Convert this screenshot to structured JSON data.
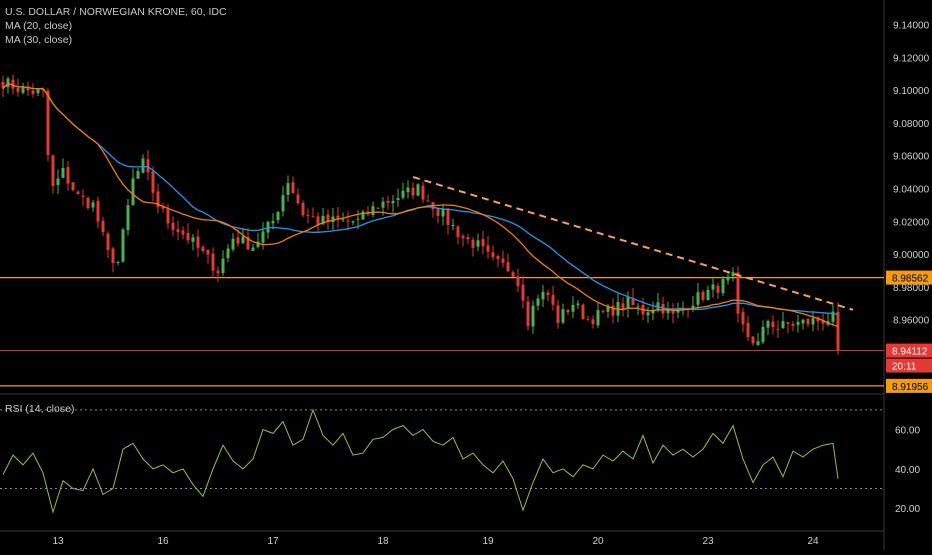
{
  "header": {
    "symbol_line": "U.S. DOLLAR / NORWEGIAN KRONE, 60, IDC",
    "ma20_label": "MA (20, close)",
    "ma30_label": "MA (30, close)",
    "rsi_label": "RSI (14, close)"
  },
  "colors": {
    "background": "#000000",
    "up_candle": "#4caf50",
    "down_candle": "#e53935",
    "ma20": "#f57c00",
    "ma30": "#2196f3",
    "rsi_line": "#8bc34a",
    "level_line": "#f39c12",
    "price_line": "#d32f2f",
    "trendline": "#f5a05a",
    "axis_text": "#d0d0d0"
  },
  "price_axis": {
    "ticks": [
      "9.14000",
      "9.12000",
      "9.10000",
      "9.08000",
      "9.06000",
      "9.04000",
      "9.02000",
      "9.00000",
      "8.98000",
      "8.96000"
    ]
  },
  "price_badges": {
    "upper_level": "8.98562",
    "current_price": "8.94112",
    "countdown": "20:11",
    "lower_level": "8.91956"
  },
  "rsi_axis": {
    "ticks": [
      "60.00",
      "40.00",
      "20.00"
    ]
  },
  "time_axis": {
    "labels": [
      "13",
      "16",
      "17",
      "18",
      "19",
      "20",
      "23",
      "24"
    ]
  },
  "chart_data": {
    "type": "candlestick",
    "price_ylim": [
      8.9195,
      9.144
    ],
    "rsi_ylim": [
      14,
      75
    ],
    "levels": [
      {
        "value": 8.98562
      },
      {
        "value": 8.91956
      },
      {
        "value": 8.94112
      }
    ],
    "trendline": {
      "from": {
        "session": "18",
        "price": 9.047
      },
      "to": {
        "session": "24",
        "price": 8.966
      }
    },
    "rsi_bands": [
      70,
      30
    ],
    "time_sessions": [
      {
        "label": "13",
        "index": 11
      },
      {
        "label": "16",
        "index": 32
      },
      {
        "label": "17",
        "index": 54
      },
      {
        "label": "18",
        "index": 76
      },
      {
        "label": "19",
        "index": 97
      },
      {
        "label": "20",
        "index": 119
      },
      {
        "label": "23",
        "index": 141
      },
      {
        "label": "24",
        "index": 162
      }
    ],
    "price_anchors": [
      [
        0,
        9.105
      ],
      [
        4,
        9.1
      ],
      [
        8,
        9.098
      ],
      [
        9,
        9.06
      ],
      [
        10,
        9.04
      ],
      [
        12,
        9.05
      ],
      [
        15,
        9.035
      ],
      [
        18,
        9.03
      ],
      [
        21,
        9.0
      ],
      [
        23,
        8.995
      ],
      [
        26,
        9.045
      ],
      [
        28,
        9.055
      ],
      [
        31,
        9.03
      ],
      [
        33,
        9.02
      ],
      [
        37,
        9.01
      ],
      [
        40,
        9.0
      ],
      [
        43,
        8.99
      ],
      [
        46,
        9.01
      ],
      [
        50,
        9.005
      ],
      [
        54,
        9.02
      ],
      [
        57,
        9.045
      ],
      [
        60,
        9.025
      ],
      [
        63,
        9.02
      ],
      [
        67,
        9.02
      ],
      [
        71,
        9.02
      ],
      [
        75,
        9.03
      ],
      [
        79,
        9.035
      ],
      [
        83,
        9.04
      ],
      [
        86,
        9.03
      ],
      [
        89,
        9.02
      ],
      [
        92,
        9.01
      ],
      [
        95,
        9.005
      ],
      [
        98,
        8.995
      ],
      [
        102,
        8.99
      ],
      [
        104,
        8.975
      ],
      [
        105,
        8.96
      ],
      [
        107,
        8.975
      ],
      [
        109,
        8.975
      ],
      [
        111,
        8.96
      ],
      [
        114,
        8.97
      ],
      [
        117,
        8.96
      ],
      [
        121,
        8.965
      ],
      [
        125,
        8.97
      ],
      [
        128,
        8.965
      ],
      [
        131,
        8.97
      ],
      [
        134,
        8.962
      ],
      [
        137,
        8.97
      ],
      [
        140,
        8.975
      ],
      [
        143,
        8.98
      ],
      [
        146,
        8.985
      ],
      [
        147,
        8.96
      ],
      [
        149,
        8.95
      ],
      [
        151,
        8.945
      ],
      [
        153,
        8.96
      ],
      [
        155,
        8.955
      ],
      [
        157,
        8.957
      ],
      [
        160,
        8.958
      ],
      [
        164,
        8.96
      ],
      [
        166,
        8.961
      ],
      [
        167,
        8.943
      ]
    ],
    "rsi_anchors": [
      [
        0,
        37
      ],
      [
        2,
        47
      ],
      [
        4,
        42
      ],
      [
        6,
        48
      ],
      [
        8,
        38
      ],
      [
        10,
        18
      ],
      [
        12,
        34
      ],
      [
        14,
        30
      ],
      [
        16,
        29
      ],
      [
        18,
        40
      ],
      [
        20,
        27
      ],
      [
        22,
        30
      ],
      [
        24,
        50
      ],
      [
        26,
        53
      ],
      [
        28,
        45
      ],
      [
        30,
        40
      ],
      [
        32,
        42
      ],
      [
        34,
        38
      ],
      [
        36,
        40
      ],
      [
        38,
        32
      ],
      [
        40,
        26
      ],
      [
        42,
        40
      ],
      [
        44,
        52
      ],
      [
        46,
        44
      ],
      [
        48,
        40
      ],
      [
        50,
        45
      ],
      [
        52,
        60
      ],
      [
        54,
        58
      ],
      [
        56,
        64
      ],
      [
        58,
        52
      ],
      [
        60,
        55
      ],
      [
        62,
        70
      ],
      [
        64,
        57
      ],
      [
        66,
        52
      ],
      [
        68,
        58
      ],
      [
        70,
        47
      ],
      [
        72,
        48
      ],
      [
        74,
        55
      ],
      [
        76,
        56
      ],
      [
        78,
        60
      ],
      [
        80,
        62
      ],
      [
        82,
        57
      ],
      [
        84,
        60
      ],
      [
        86,
        54
      ],
      [
        88,
        52
      ],
      [
        90,
        56
      ],
      [
        92,
        45
      ],
      [
        94,
        48
      ],
      [
        96,
        42
      ],
      [
        98,
        38
      ],
      [
        100,
        44
      ],
      [
        102,
        35
      ],
      [
        104,
        19
      ],
      [
        106,
        33
      ],
      [
        108,
        45
      ],
      [
        110,
        38
      ],
      [
        112,
        40
      ],
      [
        114,
        36
      ],
      [
        116,
        42
      ],
      [
        118,
        40
      ],
      [
        120,
        47
      ],
      [
        122,
        44
      ],
      [
        124,
        49
      ],
      [
        126,
        45
      ],
      [
        128,
        57
      ],
      [
        130,
        43
      ],
      [
        132,
        52
      ],
      [
        134,
        47
      ],
      [
        136,
        50
      ],
      [
        138,
        46
      ],
      [
        140,
        50
      ],
      [
        142,
        58
      ],
      [
        144,
        53
      ],
      [
        146,
        62
      ],
      [
        148,
        45
      ],
      [
        150,
        33
      ],
      [
        152,
        42
      ],
      [
        154,
        46
      ],
      [
        156,
        36
      ],
      [
        158,
        49
      ],
      [
        160,
        46
      ],
      [
        162,
        50
      ],
      [
        164,
        52
      ],
      [
        166,
        53
      ],
      [
        167,
        35
      ]
    ]
  }
}
